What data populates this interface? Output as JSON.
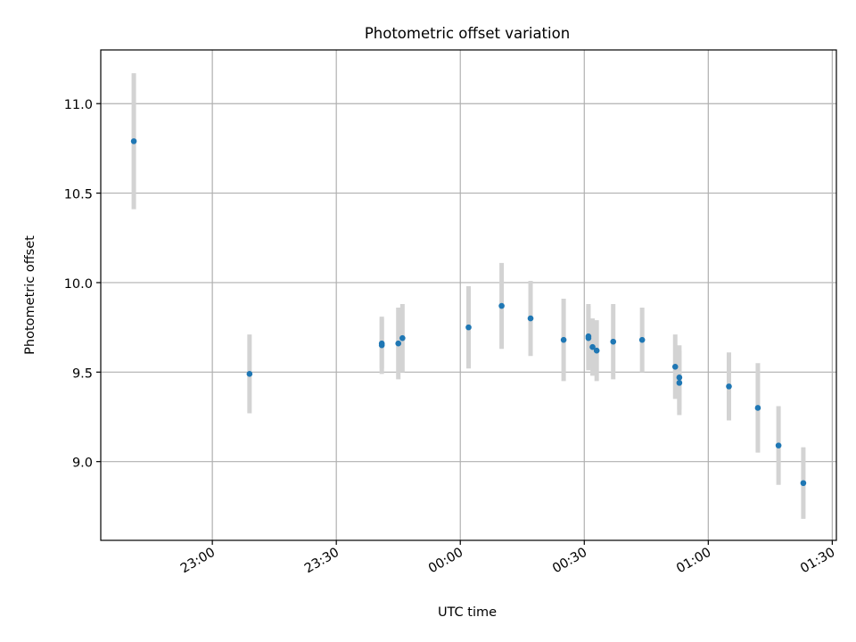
{
  "chart_data": {
    "type": "scatter",
    "title": "Photometric offset variation",
    "xlabel": "UTC time",
    "ylabel": "Photometric offset",
    "xlim": [
      "22:33",
      "01:31"
    ],
    "ylim": [
      8.56,
      11.3
    ],
    "grid": true,
    "x_ticks": [
      "23:00",
      "23:30",
      "00:00",
      "00:30",
      "01:00",
      "01:30"
    ],
    "y_ticks": [
      "9.0",
      "9.5",
      "10.0",
      "10.5",
      "11.0"
    ],
    "points": [
      {
        "t": "22:41",
        "y": 10.79,
        "err": 0.38
      },
      {
        "t": "23:09",
        "y": 9.49,
        "err": 0.22
      },
      {
        "t": "23:41",
        "y": 9.66,
        "err": 0.14
      },
      {
        "t": "23:41",
        "y": 9.65,
        "err": 0.16
      },
      {
        "t": "23:45",
        "y": 9.66,
        "err": 0.2
      },
      {
        "t": "23:46",
        "y": 9.69,
        "err": 0.19
      },
      {
        "t": "00:02",
        "y": 9.75,
        "err": 0.23
      },
      {
        "t": "00:10",
        "y": 9.87,
        "err": 0.24
      },
      {
        "t": "00:17",
        "y": 9.8,
        "err": 0.21
      },
      {
        "t": "00:25",
        "y": 9.68,
        "err": 0.23
      },
      {
        "t": "00:31",
        "y": 9.7,
        "err": 0.18
      },
      {
        "t": "00:31",
        "y": 9.69,
        "err": 0.18
      },
      {
        "t": "00:32",
        "y": 9.64,
        "err": 0.16
      },
      {
        "t": "00:33",
        "y": 9.62,
        "err": 0.17
      },
      {
        "t": "00:37",
        "y": 9.67,
        "err": 0.21
      },
      {
        "t": "00:44",
        "y": 9.68,
        "err": 0.18
      },
      {
        "t": "00:52",
        "y": 9.53,
        "err": 0.18
      },
      {
        "t": "00:53",
        "y": 9.44,
        "err": 0.18
      },
      {
        "t": "00:53",
        "y": 9.47,
        "err": 0.18
      },
      {
        "t": "01:05",
        "y": 9.42,
        "err": 0.19
      },
      {
        "t": "01:12",
        "y": 9.3,
        "err": 0.25
      },
      {
        "t": "01:17",
        "y": 9.09,
        "err": 0.22
      },
      {
        "t": "01:23",
        "y": 8.88,
        "err": 0.2
      }
    ],
    "colors": {
      "marker": "#1f77b4",
      "errorbar": "#d3d3d3",
      "grid": "#b0b0b0"
    }
  }
}
